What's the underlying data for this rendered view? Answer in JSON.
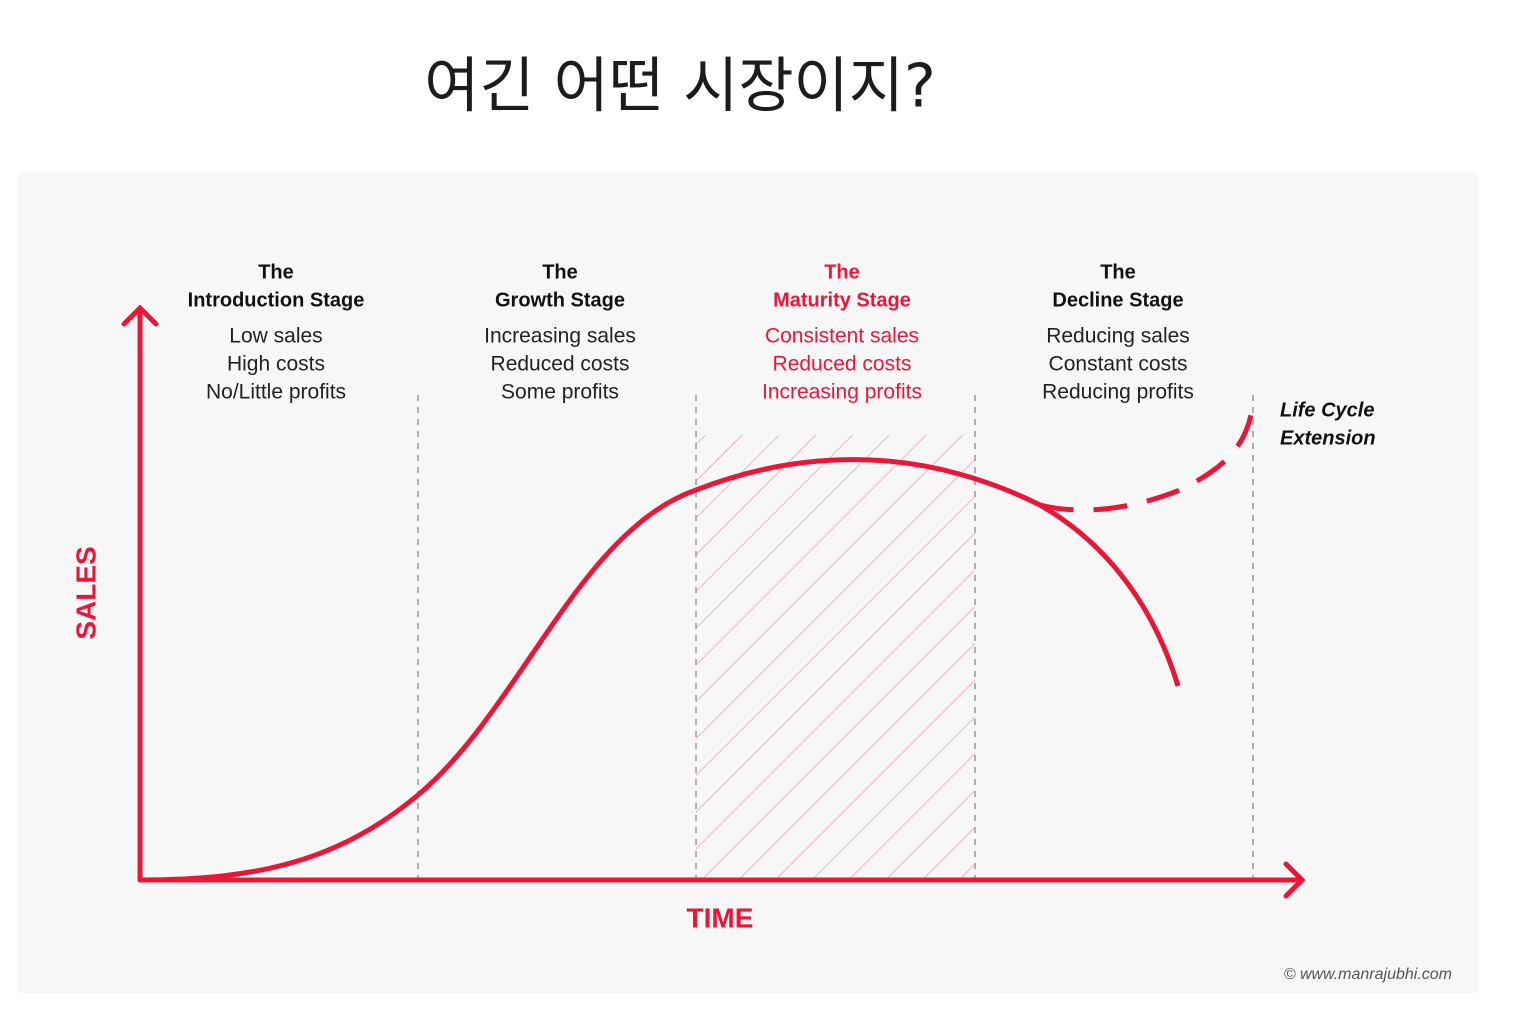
{
  "title": "여긴 어떤 시장이지?",
  "diagram": {
    "stages": [
      {
        "heading": "The",
        "name": "Introduction Stage",
        "notes": [
          "Low sales",
          "High costs",
          "No/Little profits"
        ]
      },
      {
        "heading": "The",
        "name": "Growth Stage",
        "notes": [
          "Increasing sales",
          "Reduced costs",
          "Some profits"
        ]
      },
      {
        "heading": "The",
        "name": "Maturity Stage",
        "notes": [
          "Consistent sales",
          "Reduced costs",
          "Increasing profits"
        ]
      },
      {
        "heading": "The",
        "name": "Decline Stage",
        "notes": [
          "Reducing sales",
          "Constant costs",
          "Reducing profits"
        ]
      }
    ],
    "y_axis_label": "SALES",
    "x_axis_label": "TIME",
    "extension_label": [
      "Life Cycle",
      "Extension"
    ],
    "credit": "© www.manrajubhi.com"
  }
}
